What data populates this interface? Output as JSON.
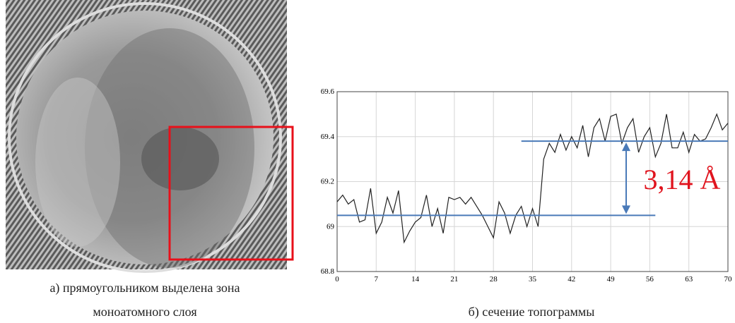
{
  "captions": [
    "а) прямоугольником выделена зона",
    "моноатомного слоя",
    "б) сечение топограммы"
  ],
  "chart_data": {
    "type": "line",
    "x": [
      0,
      1,
      2,
      3,
      4,
      5,
      6,
      7,
      8,
      9,
      10,
      11,
      12,
      13,
      14,
      15,
      16,
      17,
      18,
      19,
      20,
      21,
      22,
      23,
      24,
      25,
      26,
      27,
      28,
      29,
      30,
      31,
      32,
      33,
      34,
      35,
      36,
      37,
      38,
      39,
      40,
      41,
      42,
      43,
      44,
      45,
      46,
      47,
      48,
      49,
      50,
      51,
      52,
      53,
      54,
      55,
      56,
      57,
      58,
      59,
      60,
      61,
      62,
      63,
      64,
      65,
      66,
      67,
      68,
      69,
      70
    ],
    "series": [
      {
        "color": "#222222",
        "values": [
          69.11,
          69.14,
          69.1,
          69.12,
          69.02,
          69.03,
          69.17,
          68.97,
          69.02,
          69.13,
          69.06,
          69.16,
          68.93,
          68.98,
          69.02,
          69.04,
          69.14,
          69.0,
          69.08,
          68.97,
          69.13,
          69.12,
          69.13,
          69.1,
          69.13,
          69.09,
          69.05,
          69.0,
          68.95,
          69.11,
          69.06,
          68.97,
          69.05,
          69.09,
          69.0,
          69.08,
          69.0,
          69.3,
          69.37,
          69.33,
          69.41,
          69.34,
          69.4,
          69.35,
          69.45,
          69.31,
          69.44,
          69.48,
          69.38,
          69.49,
          69.5,
          69.37,
          69.44,
          69.48,
          69.33,
          69.4,
          69.44,
          69.31,
          69.37,
          69.5,
          69.35,
          69.35,
          69.42,
          69.33,
          69.41,
          69.38,
          69.39,
          69.44,
          69.5,
          69.43,
          69.46
        ]
      }
    ],
    "xlim": [
      0,
      70
    ],
    "xticks": [
      0,
      7,
      14,
      21,
      28,
      35,
      42,
      49,
      56,
      63,
      70
    ],
    "ylim": [
      68.8,
      69.6
    ],
    "yticks": [
      68.8,
      69,
      69.2,
      69.4,
      69.6
    ],
    "grid": true,
    "hlines": [
      {
        "value": 69.05,
        "xlim": [
          0,
          57
        ]
      },
      {
        "value": 69.38,
        "xlim": [
          33,
          70
        ]
      }
    ],
    "hline_color": "#4a7ab8",
    "annotation": "3,14 Å",
    "annotation_color": "#e0141e"
  }
}
